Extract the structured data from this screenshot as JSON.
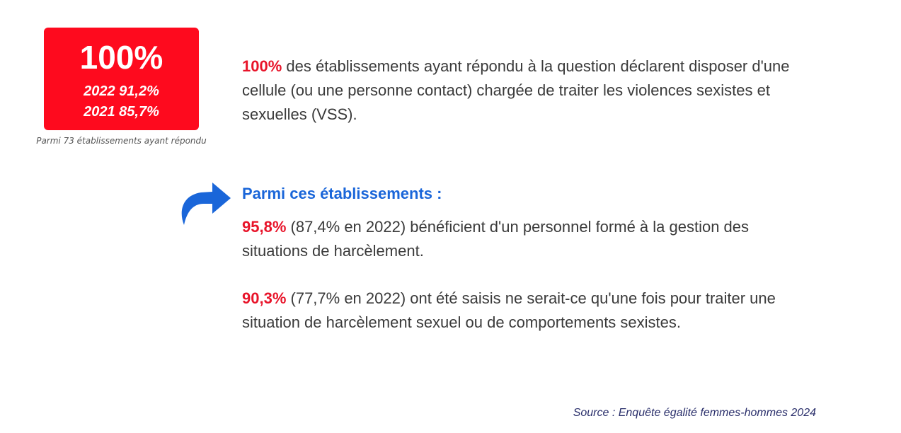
{
  "stat": {
    "value": "100%",
    "line1": "2022 91,2%",
    "line2": "2021 85,7%",
    "caption": "Parmi 73 établissements ayant répondu",
    "color": "#fe0a1e"
  },
  "paragraph1": {
    "highlight": "100%",
    "text": " des établissements ayant répondu à la question déclarent disposer d'une cellule (ou une personne contact) chargée de traiter les violences sexistes et sexuelles (VSS)."
  },
  "subheading": "Parmi ces établissements :",
  "paragraph2": {
    "highlight": "95,8%",
    "text": " (87,4% en 2022) bénéficient d'un personnel formé à la gestion des situations de harcèlement."
  },
  "paragraph3": {
    "highlight": "90,3%",
    "text": " (77,7% en 2022) ont été saisis ne serait-ce qu'une fois pour traiter une situation de harcèlement sexuel ou de comportements sexistes."
  },
  "source": "Source : Enquête égalité femmes-hommes 2024",
  "icons": {
    "arrow": "curved-arrow-right-icon"
  },
  "colors": {
    "highlight": "#e8142a",
    "heading": "#1a66d9",
    "source": "#2a2f6b"
  }
}
